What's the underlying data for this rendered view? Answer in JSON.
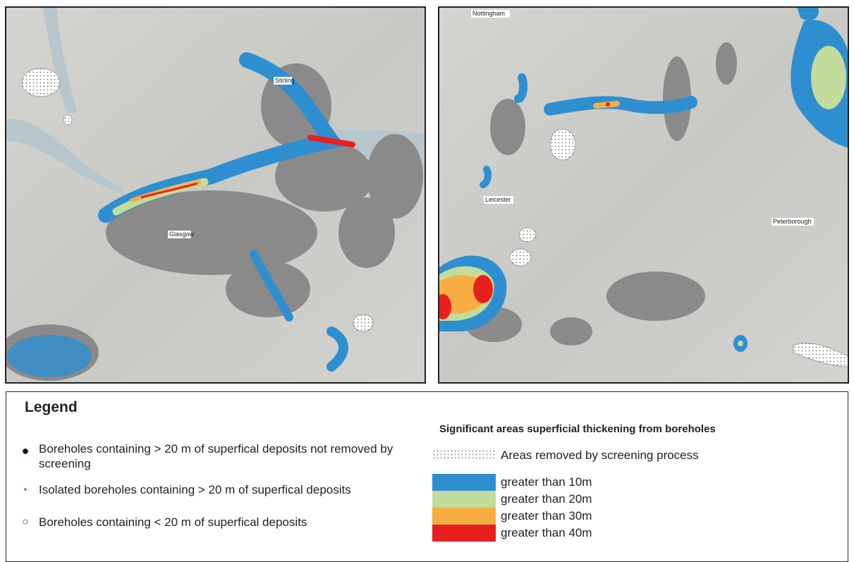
{
  "maps": [
    {
      "labels": [
        "Stirling",
        "Glasgow"
      ]
    },
    {
      "labels": [
        "Nottingham",
        "Leicester",
        "Peterborough"
      ]
    }
  ],
  "legend": {
    "title": "Legend",
    "points": [
      "Boreholes containing > 20 m of superfical deposits not removed by screening",
      "Isolated boreholes containing > 20 m of superfical deposits",
      "Boreholes containing < 20 m of superfical deposits"
    ],
    "areas_title": "Significant areas superficial thickening from boreholes",
    "screened": "Areas removed by screening process",
    "classes": [
      {
        "label": "greater than 10m",
        "color": "#2e8fd0"
      },
      {
        "label": "greater than 20m",
        "color": "#c3dc9b"
      },
      {
        "label": "greater than 30m",
        "color": "#f8ad42"
      },
      {
        "label": "greater than 40m",
        "color": "#e8201d"
      }
    ]
  }
}
